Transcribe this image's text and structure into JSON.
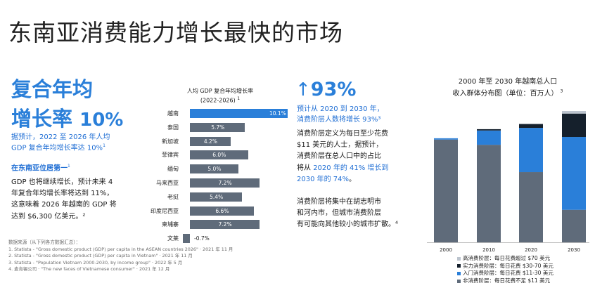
{
  "title": "东南亚消费能力增长最快的市场",
  "left": {
    "headline_line1": "复合年均",
    "headline_line2": "增长率",
    "headline_value": "10%",
    "forecast_line1": "据预计，2022 至 2026 年人均",
    "forecast_line2": "GDP 复合年均增长率达 10%",
    "forecast_ref": "1",
    "rank_text": "在东南亚位居第一",
    "rank_ref": "1",
    "body_lines": [
      "GDP 也将继续增长，预计未来 4",
      "年复合年均增长率将达到 11%，",
      "这意味着 2026 年越南的 GDP 将",
      "达到 $6,300 亿美元。²"
    ]
  },
  "sources": {
    "heading": "数据来源（从下列各方数据汇总）：",
    "items": [
      "1. Statista - \"Gross domestic product (GDP) per capita in the ASEAN countries 2026\" · 2021 年 11 月",
      "2. Statista - \"Gross domestic product (GDP) per capita in Vietnam\" · 2021 年 11 月",
      "3. Statista - \"Population Vietnam 2000-2030, by income group\" · 2022 年 5 月",
      "4. 麦肯锡公司 · \"The new faces of Vietnamese consumer\" · 2021 年 12 月"
    ]
  },
  "middle": {
    "stat_arrow": "↑",
    "stat_value": "93%",
    "stat_sub_line1": "预计从 2020 到 2030 年，",
    "stat_sub_line2": "消费阶层人数将增长 93%³",
    "para1": [
      {
        "t": "消费阶层定义为每日至少花费",
        "hl": false
      },
      {
        "t": "$11 美元的人士，据预计，",
        "hl": false
      },
      {
        "t": "消费阶层在总人口中的占比",
        "hl": false
      },
      {
        "pre": "将从 ",
        "hlt": "2020 年的 41% 增长到",
        "post": ""
      },
      {
        "pre": "",
        "hlt": "2030 年的 74%",
        "post": "。"
      }
    ],
    "para2": [
      "消费阶层将集中在胡志明市",
      "和河内市，但城市消费阶层",
      "有可能向其他较小的城市扩散。⁴"
    ]
  },
  "colors": {
    "accent": "#2a7fd9",
    "accent_text": "#1f6ed4",
    "bar_gray": "#5f6b7a",
    "bar_highlight": "#2a7fd9",
    "high": "#bcc4ce",
    "solid": "#15202c",
    "entry": "#2a7fd9",
    "non": "#5f6b7a"
  },
  "chart_data": [
    {
      "type": "bar",
      "orientation": "horizontal",
      "title": "人均 GDP 复合年均增长率",
      "subtitle": "(2022-2026)",
      "title_ref": "1",
      "categories": [
        "越南",
        "泰国",
        "新加坡",
        "菲律宾",
        "缅甸",
        "马来西亚",
        "老挝",
        "印度尼西亚",
        "柬埔寨",
        "文莱"
      ],
      "values": [
        10.1,
        5.7,
        4.2,
        6.0,
        5.0,
        7.2,
        5.4,
        6.6,
        7.2,
        -0.7
      ],
      "value_labels": [
        "10.1%",
        "5.7%",
        "4.2%",
        "6.0%",
        "5.0%",
        "7.2%",
        "5.4%",
        "6.6%",
        "7.2%",
        "-0.7%"
      ],
      "highlight": "越南",
      "xlim": [
        -0.7,
        10.1
      ]
    },
    {
      "type": "bar",
      "stacked": true,
      "title": "2000 年至 2030 年越南总人口",
      "subtitle": "收入群体分布图（单位：百万人）",
      "title_ref": "3",
      "categories": [
        "2000",
        "2010",
        "2020",
        "2030"
      ],
      "series": [
        {
          "name": "非消费阶层：每日花费不足 $11 美元",
          "key": "non",
          "values": [
            79,
            75,
            54,
            25
          ]
        },
        {
          "name": "入门消费阶层：每日花费 $11-30 美元",
          "key": "entry",
          "values": [
            1,
            11,
            34,
            56
          ]
        },
        {
          "name": "实力消费阶层：每日花费 $30-70 美元",
          "key": "solid",
          "values": [
            0,
            1,
            3,
            18
          ]
        },
        {
          "name": "高消费阶层：每日花费超过 $70 美元",
          "key": "high",
          "values": [
            0,
            0,
            0,
            2
          ]
        }
      ],
      "ylim": [
        0,
        101
      ],
      "grid": false
    }
  ]
}
